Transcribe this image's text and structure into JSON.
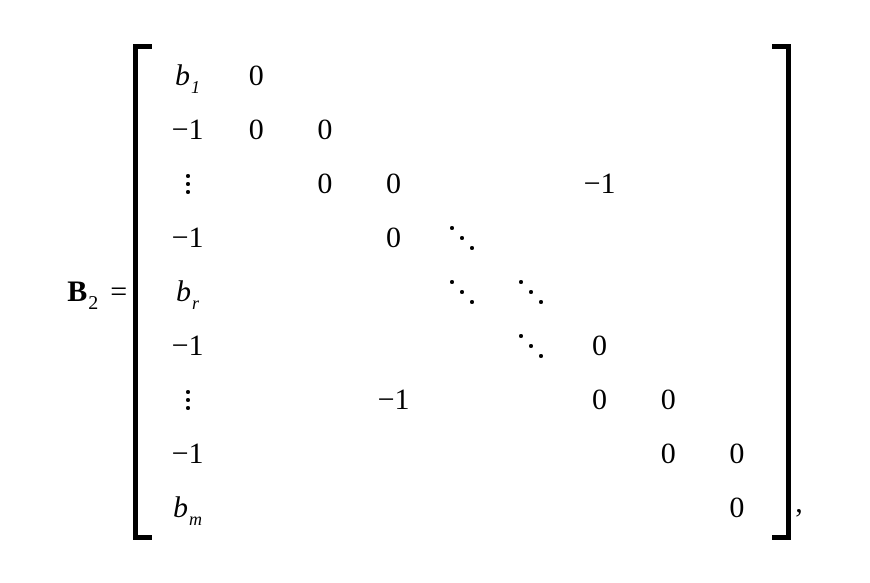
{
  "colors": {
    "text": "#000000",
    "background": "#ffffff"
  },
  "fontsize_main": 30,
  "fontsize_sub": 20,
  "lhs": {
    "symbol": "B",
    "subscript": "2"
  },
  "equals": "=",
  "comma": ",",
  "matrix": {
    "rows": 9,
    "cols": 9,
    "cells": {
      "r1c1_b": "b",
      "r1c1_sub": "1",
      "r1c2": "0",
      "r2c1": "−1",
      "r2c2": "0",
      "r2c3": "0",
      "r3c3": "0",
      "r3c4": "0",
      "r3c7": "−1",
      "r4c1": "−1",
      "r4c4": "0",
      "r5c1_b": "b",
      "r5c1_sub": "r",
      "r6c1": "−1",
      "r6c7": "0",
      "r7c4": "−1",
      "r7c7": "0",
      "r7c8": "0",
      "r8c1": "−1",
      "r8c8": "0",
      "r8c9": "0",
      "r9c1_b": "b",
      "r9c1_sub": "m",
      "r9c9": "0"
    }
  }
}
